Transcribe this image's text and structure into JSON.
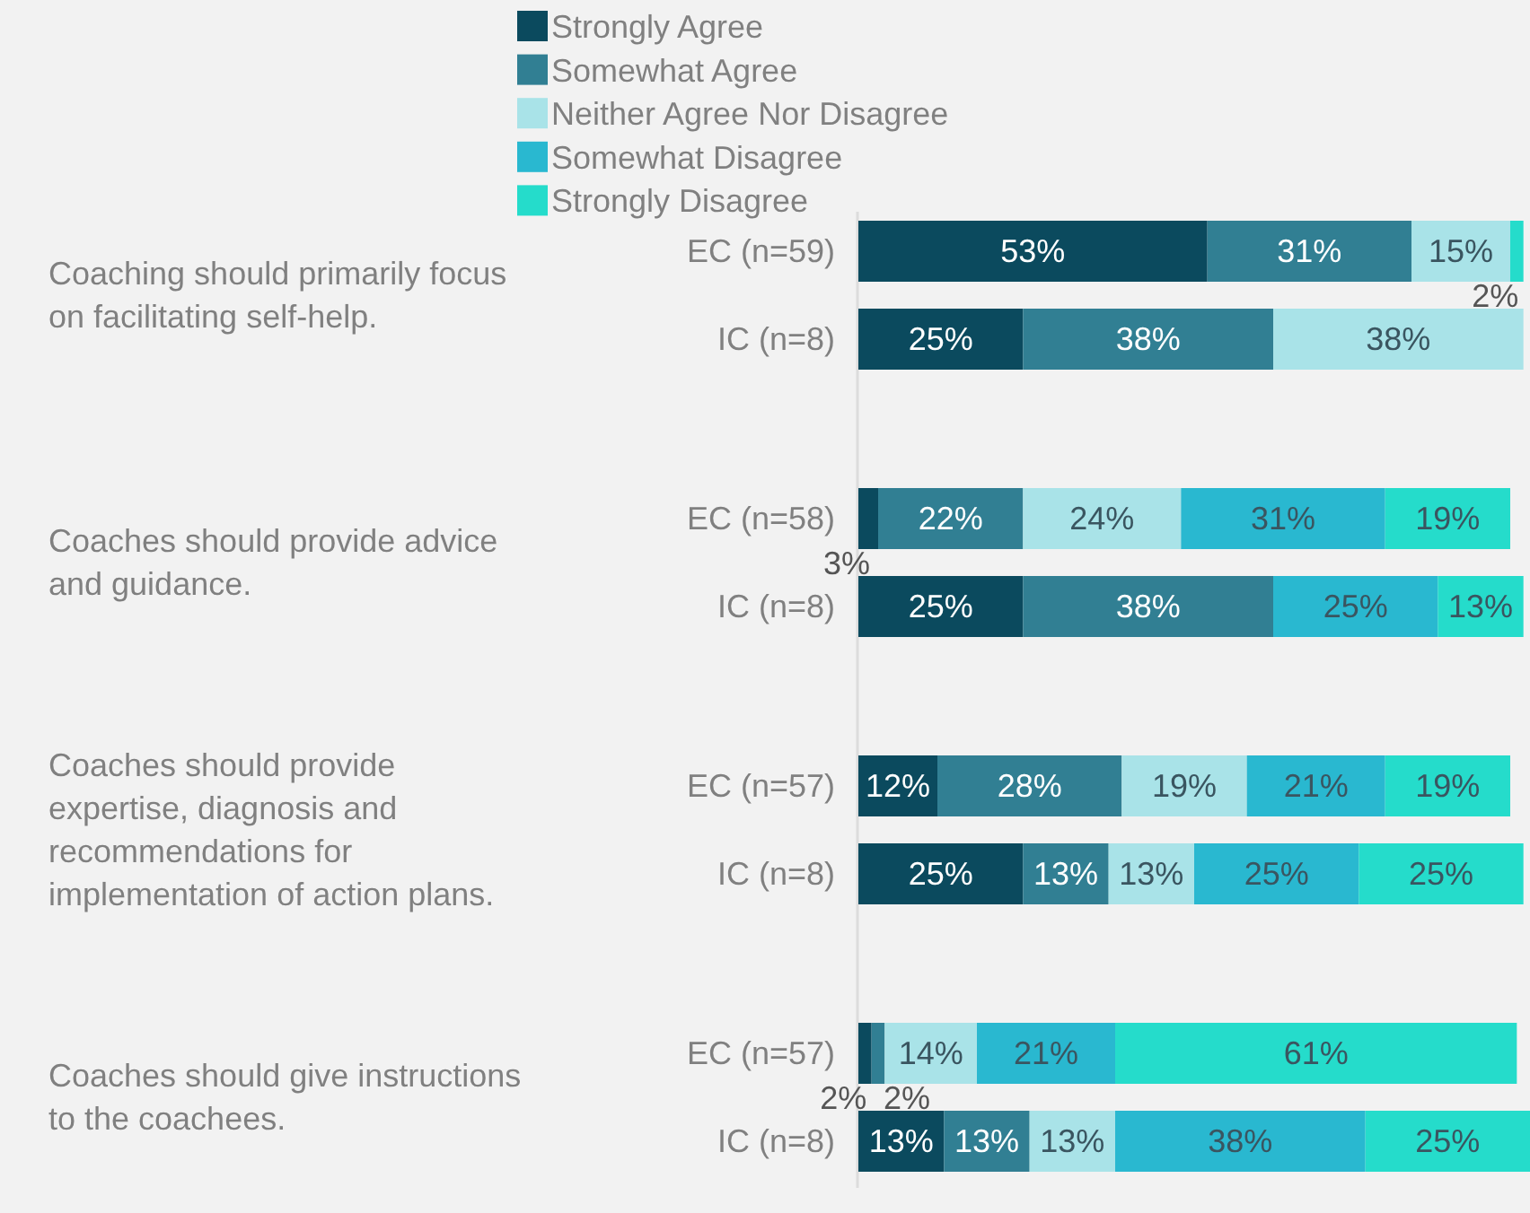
{
  "chart_data": {
    "type": "bar",
    "orientation": "horizontal",
    "stacked": true,
    "categories": [
      "EC (n=59)",
      "IC (n=8)",
      "EC (n=58)",
      "IC (n=8)",
      "EC (n=57)",
      "IC (n=8)",
      "EC (n=57)",
      "IC (n=8)"
    ],
    "series": [
      {
        "name": "Strongly Agree",
        "color": "#0b4a5e",
        "values": [
          53,
          25,
          3,
          25,
          12,
          25,
          2,
          13
        ],
        "value_labels": [
          "53%",
          "25%",
          "3%",
          "25%",
          "12%",
          "25%",
          "2%",
          "13%"
        ]
      },
      {
        "name": "Somewhat Agree",
        "color": "#317f93",
        "values": [
          31,
          38,
          22,
          38,
          28,
          13,
          2,
          13
        ],
        "value_labels": [
          "31%",
          "38%",
          "22%",
          "38%",
          "28%",
          "13%",
          "2%",
          "13%"
        ]
      },
      {
        "name": "Neither Agree Nor Disagree",
        "color": "#a9e3e8",
        "values": [
          15,
          38,
          24,
          null,
          19,
          13,
          14,
          13
        ],
        "value_labels": [
          "15%",
          "38%",
          "24%",
          null,
          "19%",
          "13%",
          "14%",
          "13%"
        ]
      },
      {
        "name": "Somewhat Disagree",
        "color": "#29b8d0",
        "values": [
          null,
          null,
          31,
          25,
          21,
          25,
          21,
          38
        ],
        "value_labels": [
          null,
          null,
          "31%",
          "25%",
          "21%",
          "25%",
          "21%",
          "38%"
        ]
      },
      {
        "name": "Strongly Disagree",
        "color": "#25dccb",
        "values": [
          2,
          null,
          19,
          13,
          19,
          25,
          61,
          25
        ],
        "value_labels": [
          "2%",
          null,
          "19%",
          "13%",
          "19%",
          "25%",
          "61%",
          "25%"
        ]
      }
    ],
    "xlim": [
      0,
      102
    ],
    "legend": "top",
    "annotations": [
      "Coaching should primarily focus on facilitating self-help.",
      "Coaches should provide advice and guidance.",
      "Coaches should provide expertise, diagnosis and recommendations for implementation of action plans.",
      "Coaches should give instructions to the coachees."
    ]
  }
}
